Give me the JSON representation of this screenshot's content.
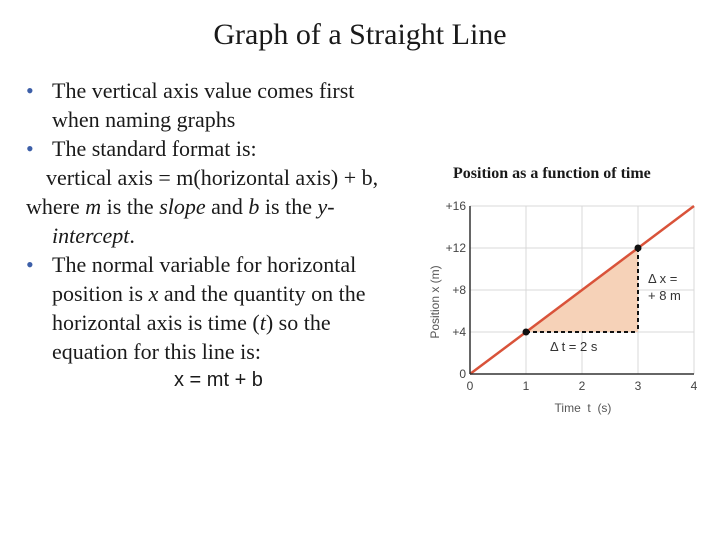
{
  "slide": {
    "title": "Graph of a Straight Line",
    "bullet1": {
      "line1": "The vertical axis value comes first",
      "line2": "when naming graphs"
    },
    "bullet2": {
      "line1": "The standard format is:",
      "formula": "vertical axis = m(horizontal axis) + b,",
      "where": "where ",
      "m": "m",
      "is_the": " is the ",
      "slope": "slope",
      "and": "  and ",
      "b": "b",
      "is_the2": " is the ",
      "y": "y-",
      "intercept": "intercept",
      "period": "."
    },
    "bullet3": {
      "line1": "The normal variable for horizontal",
      "line2a": "position is ",
      "x": "x",
      "line2b": " and the quantity on the",
      "line3": "horizontal axis is time (",
      "t": "t",
      "line3b": ") so the",
      "line4": "equation for this line is:"
    },
    "equation": "x = mt + b"
  },
  "chart_data": {
    "type": "line",
    "title": "Position as a function of time",
    "xlabel": "Time  t  (s)",
    "ylabel": "Position  x (m)",
    "xlim": [
      0,
      4
    ],
    "ylim": [
      0,
      16
    ],
    "x_ticks": [
      "0",
      "1",
      "2",
      "3",
      "4"
    ],
    "y_ticks": [
      "0",
      "+4",
      "+8",
      "+12",
      "+16"
    ],
    "series": [
      {
        "x": [
          0,
          4
        ],
        "y": [
          0,
          16
        ]
      }
    ],
    "points": [
      {
        "x": 1,
        "y": 4
      },
      {
        "x": 3,
        "y": 12
      }
    ],
    "annotations": {
      "dt": "Δ t = 2 s",
      "dx1": "Δ x =",
      "dx2": "+ 8 m"
    },
    "colors": {
      "line": "#d9533a",
      "fill": "#f6d2b8",
      "grid": "#d9d9d9"
    }
  }
}
